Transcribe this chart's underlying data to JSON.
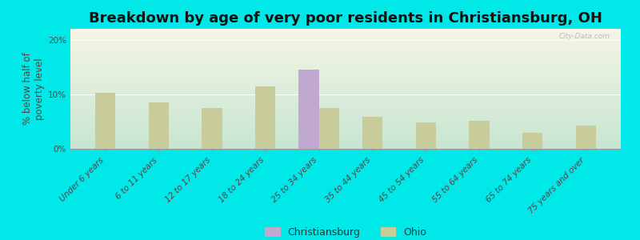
{
  "title": "Breakdown by age of very poor residents in Christiansburg, OH",
  "ylabel": "% below half of\npoverty level",
  "categories": [
    "Under 6 years",
    "6 to 11 years",
    "12 to 17 years",
    "18 to 24 years",
    "25 to 34 years",
    "35 to 44 years",
    "45 to 54 years",
    "55 to 64 years",
    "65 to 74 years",
    "75 years and over"
  ],
  "ohio_values": [
    10.2,
    8.5,
    7.5,
    11.5,
    7.5,
    5.8,
    4.8,
    5.2,
    3.0,
    4.2
  ],
  "christiansburg_values": [
    0,
    0,
    0,
    0,
    14.5,
    0,
    0,
    0,
    0,
    0
  ],
  "ohio_color": "#c8cc9a",
  "christiansburg_color": "#c0a8d0",
  "background_outer": "#00e8e8",
  "ylim": [
    0,
    22
  ],
  "yticks": [
    0,
    10,
    20
  ],
  "ytick_labels": [
    "0%",
    "10%",
    "20%"
  ],
  "bar_width": 0.38,
  "title_fontsize": 13,
  "axis_label_fontsize": 8.5,
  "tick_fontsize": 7.5,
  "legend_fontsize": 9,
  "watermark": "City-Data.com"
}
